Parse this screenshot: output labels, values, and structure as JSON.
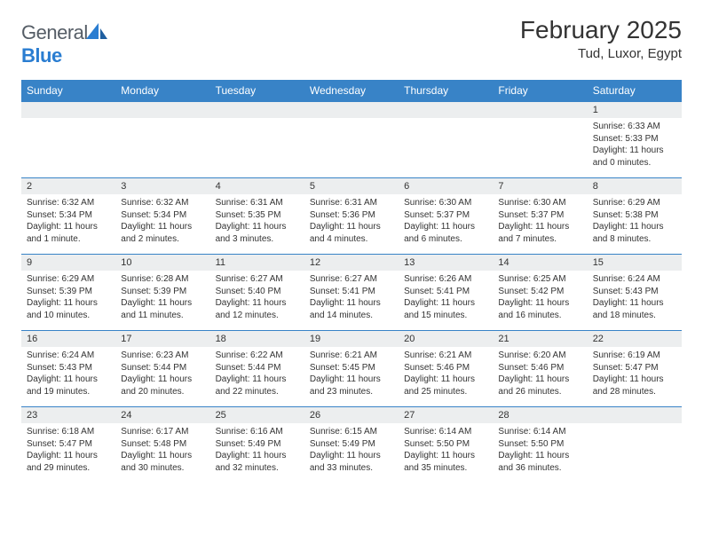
{
  "brand": {
    "name_a": "General",
    "name_b": "Blue"
  },
  "title": "February 2025",
  "location": "Tud, Luxor, Egypt",
  "colors": {
    "header_bg": "#3883c7",
    "header_fg": "#ffffff",
    "row_sep": "#3883c7",
    "daynum_bg": "#eceeef",
    "text": "#333333",
    "brand_grey": "#555d66",
    "brand_blue": "#2a7dd1",
    "page_bg": "#ffffff"
  },
  "weekdays": [
    "Sunday",
    "Monday",
    "Tuesday",
    "Wednesday",
    "Thursday",
    "Friday",
    "Saturday"
  ],
  "weeks": [
    [
      null,
      null,
      null,
      null,
      null,
      null,
      {
        "n": "1",
        "sunrise": "6:33 AM",
        "sunset": "5:33 PM",
        "daylight": "11 hours and 0 minutes."
      }
    ],
    [
      {
        "n": "2",
        "sunrise": "6:32 AM",
        "sunset": "5:34 PM",
        "daylight": "11 hours and 1 minute."
      },
      {
        "n": "3",
        "sunrise": "6:32 AM",
        "sunset": "5:34 PM",
        "daylight": "11 hours and 2 minutes."
      },
      {
        "n": "4",
        "sunrise": "6:31 AM",
        "sunset": "5:35 PM",
        "daylight": "11 hours and 3 minutes."
      },
      {
        "n": "5",
        "sunrise": "6:31 AM",
        "sunset": "5:36 PM",
        "daylight": "11 hours and 4 minutes."
      },
      {
        "n": "6",
        "sunrise": "6:30 AM",
        "sunset": "5:37 PM",
        "daylight": "11 hours and 6 minutes."
      },
      {
        "n": "7",
        "sunrise": "6:30 AM",
        "sunset": "5:37 PM",
        "daylight": "11 hours and 7 minutes."
      },
      {
        "n": "8",
        "sunrise": "6:29 AM",
        "sunset": "5:38 PM",
        "daylight": "11 hours and 8 minutes."
      }
    ],
    [
      {
        "n": "9",
        "sunrise": "6:29 AM",
        "sunset": "5:39 PM",
        "daylight": "11 hours and 10 minutes."
      },
      {
        "n": "10",
        "sunrise": "6:28 AM",
        "sunset": "5:39 PM",
        "daylight": "11 hours and 11 minutes."
      },
      {
        "n": "11",
        "sunrise": "6:27 AM",
        "sunset": "5:40 PM",
        "daylight": "11 hours and 12 minutes."
      },
      {
        "n": "12",
        "sunrise": "6:27 AM",
        "sunset": "5:41 PM",
        "daylight": "11 hours and 14 minutes."
      },
      {
        "n": "13",
        "sunrise": "6:26 AM",
        "sunset": "5:41 PM",
        "daylight": "11 hours and 15 minutes."
      },
      {
        "n": "14",
        "sunrise": "6:25 AM",
        "sunset": "5:42 PM",
        "daylight": "11 hours and 16 minutes."
      },
      {
        "n": "15",
        "sunrise": "6:24 AM",
        "sunset": "5:43 PM",
        "daylight": "11 hours and 18 minutes."
      }
    ],
    [
      {
        "n": "16",
        "sunrise": "6:24 AM",
        "sunset": "5:43 PM",
        "daylight": "11 hours and 19 minutes."
      },
      {
        "n": "17",
        "sunrise": "6:23 AM",
        "sunset": "5:44 PM",
        "daylight": "11 hours and 20 minutes."
      },
      {
        "n": "18",
        "sunrise": "6:22 AM",
        "sunset": "5:44 PM",
        "daylight": "11 hours and 22 minutes."
      },
      {
        "n": "19",
        "sunrise": "6:21 AM",
        "sunset": "5:45 PM",
        "daylight": "11 hours and 23 minutes."
      },
      {
        "n": "20",
        "sunrise": "6:21 AM",
        "sunset": "5:46 PM",
        "daylight": "11 hours and 25 minutes."
      },
      {
        "n": "21",
        "sunrise": "6:20 AM",
        "sunset": "5:46 PM",
        "daylight": "11 hours and 26 minutes."
      },
      {
        "n": "22",
        "sunrise": "6:19 AM",
        "sunset": "5:47 PM",
        "daylight": "11 hours and 28 minutes."
      }
    ],
    [
      {
        "n": "23",
        "sunrise": "6:18 AM",
        "sunset": "5:47 PM",
        "daylight": "11 hours and 29 minutes."
      },
      {
        "n": "24",
        "sunrise": "6:17 AM",
        "sunset": "5:48 PM",
        "daylight": "11 hours and 30 minutes."
      },
      {
        "n": "25",
        "sunrise": "6:16 AM",
        "sunset": "5:49 PM",
        "daylight": "11 hours and 32 minutes."
      },
      {
        "n": "26",
        "sunrise": "6:15 AM",
        "sunset": "5:49 PM",
        "daylight": "11 hours and 33 minutes."
      },
      {
        "n": "27",
        "sunrise": "6:14 AM",
        "sunset": "5:50 PM",
        "daylight": "11 hours and 35 minutes."
      },
      {
        "n": "28",
        "sunrise": "6:14 AM",
        "sunset": "5:50 PM",
        "daylight": "11 hours and 36 minutes."
      },
      null
    ]
  ],
  "labels": {
    "sunrise": "Sunrise: ",
    "sunset": "Sunset: ",
    "daylight": "Daylight: "
  }
}
